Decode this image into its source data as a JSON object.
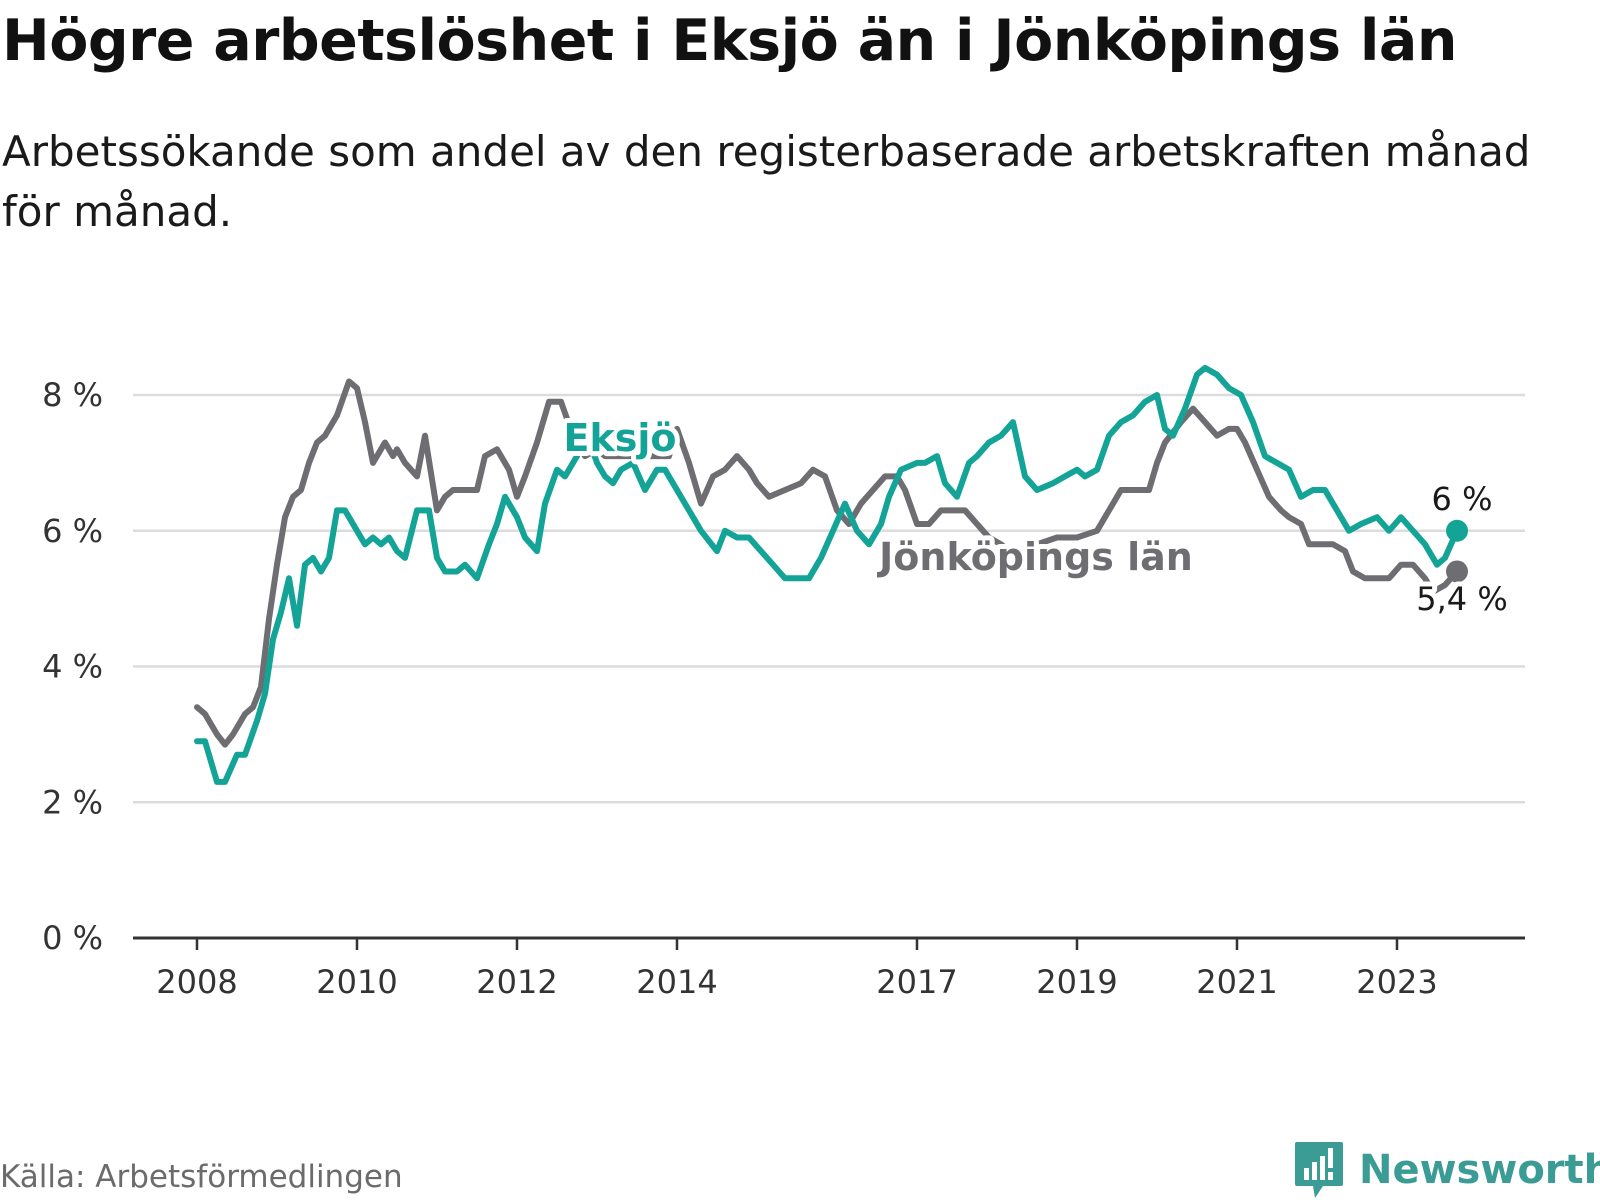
{
  "title": "Högre arbetslöshet i Eksjö än i Jönköpings län",
  "subtitle": "Arbetssökande som andel av den registerbaserade arbetskraften månad för månad.",
  "source": "Källa: Arbetsförmedlingen",
  "brand": "Newsworthy",
  "colors": {
    "eksjo": "#13a397",
    "lan": "#6e6d72",
    "grid": "#dcdcdc",
    "axis": "#333333",
    "brand": "#3b9c95"
  },
  "chart_data": {
    "type": "line",
    "title": "Högre arbetslöshet i Eksjö än i Jönköpings län",
    "xlabel": "",
    "ylabel": "",
    "ylim": [
      0,
      9
    ],
    "xlim": [
      2007.2,
      2024.6
    ],
    "yticks": [
      0,
      2,
      4,
      6,
      8
    ],
    "ytick_labels": [
      "0 %",
      "2 %",
      "4 %",
      "6 %",
      "8 %"
    ],
    "xticks": [
      2008,
      2010,
      2012,
      2014,
      2017,
      2019,
      2021,
      2023
    ],
    "xtick_labels": [
      "2008",
      "2010",
      "2012",
      "2014",
      "2017",
      "2019",
      "2021",
      "2023"
    ],
    "grid": true,
    "series": [
      {
        "name": "Jönköpings län",
        "label": "Jönköpings län",
        "end_label": "5,4 %",
        "color": "#6e6d72",
        "x": [
          2008.0,
          2008.1,
          2008.25,
          2008.35,
          2008.45,
          2008.6,
          2008.7,
          2008.8,
          2008.9,
          2009.0,
          2009.1,
          2009.2,
          2009.3,
          2009.4,
          2009.5,
          2009.6,
          2009.75,
          2009.9,
          2010.0,
          2010.1,
          2010.2,
          2010.35,
          2010.45,
          2010.5,
          2010.6,
          2010.75,
          2010.85,
          2011.0,
          2011.1,
          2011.2,
          2011.35,
          2011.5,
          2011.6,
          2011.75,
          2011.9,
          2012.0,
          2012.1,
          2012.25,
          2012.4,
          2012.55,
          2012.7,
          2012.85,
          2013.0,
          2013.1,
          2013.2,
          2013.35,
          2013.5,
          2013.6,
          2013.75,
          2013.9,
          2014.0,
          2014.15,
          2014.3,
          2014.45,
          2014.6,
          2014.75,
          2014.9,
          2015.0,
          2015.15,
          2015.35,
          2015.55,
          2015.7,
          2015.85,
          2016.0,
          2016.15,
          2016.3,
          2016.45,
          2016.6,
          2016.75,
          2016.85,
          2017.0,
          2017.15,
          2017.3,
          2017.45,
          2017.55,
          2017.6,
          2017.75,
          2017.9,
          2018.05,
          2018.15,
          2018.25,
          2018.5,
          2018.75,
          2019.0,
          2019.25,
          2019.4,
          2019.55,
          2019.75,
          2019.9,
          2020.0,
          2020.1,
          2020.3,
          2020.45,
          2020.6,
          2020.75,
          2020.9,
          2021.0,
          2021.1,
          2021.25,
          2021.4,
          2021.55,
          2021.65,
          2021.8,
          2021.9,
          2022.05,
          2022.2,
          2022.35,
          2022.45,
          2022.6,
          2022.75,
          2022.9,
          2023.05,
          2023.2,
          2023.35,
          2023.45,
          2023.6,
          2023.75
        ],
        "values": [
          3.4,
          3.3,
          3.0,
          2.85,
          3.0,
          3.3,
          3.4,
          3.7,
          4.7,
          5.5,
          6.2,
          6.5,
          6.6,
          7.0,
          7.3,
          7.4,
          7.7,
          8.2,
          8.1,
          7.6,
          7.0,
          7.3,
          7.1,
          7.2,
          7.0,
          6.8,
          7.4,
          6.3,
          6.5,
          6.6,
          6.6,
          6.6,
          7.1,
          7.2,
          6.9,
          6.5,
          6.8,
          7.3,
          7.9,
          7.9,
          7.4,
          7.1,
          7.2,
          7.1,
          7.1,
          7.1,
          7.1,
          7.1,
          7.1,
          7.1,
          7.5,
          7.0,
          6.4,
          6.8,
          6.9,
          7.1,
          6.9,
          6.7,
          6.5,
          6.6,
          6.7,
          6.9,
          6.8,
          6.3,
          6.1,
          6.4,
          6.6,
          6.8,
          6.8,
          6.6,
          6.1,
          6.1,
          6.3,
          6.3,
          6.3,
          6.3,
          6.1,
          5.9,
          5.8,
          5.7,
          5.7,
          5.8,
          5.9,
          5.9,
          6.0,
          6.3,
          6.6,
          6.6,
          6.6,
          7.0,
          7.3,
          7.6,
          7.8,
          7.6,
          7.4,
          7.5,
          7.5,
          7.3,
          6.9,
          6.5,
          6.3,
          6.2,
          6.1,
          5.8,
          5.8,
          5.8,
          5.7,
          5.4,
          5.3,
          5.3,
          5.3,
          5.5,
          5.5,
          5.3,
          5.1,
          5.2,
          5.4
        ]
      },
      {
        "name": "Eksjö",
        "label": "Eksjö",
        "end_label": "6 %",
        "color": "#13a397",
        "x": [
          2008.0,
          2008.1,
          2008.25,
          2008.35,
          2008.5,
          2008.6,
          2008.75,
          2008.85,
          2008.95,
          2009.05,
          2009.15,
          2009.25,
          2009.35,
          2009.45,
          2009.55,
          2009.65,
          2009.75,
          2009.85,
          2010.0,
          2010.1,
          2010.2,
          2010.3,
          2010.4,
          2010.5,
          2010.6,
          2010.75,
          2010.9,
          2011.0,
          2011.1,
          2011.25,
          2011.35,
          2011.5,
          2011.65,
          2011.75,
          2011.85,
          2012.0,
          2012.1,
          2012.25,
          2012.35,
          2012.5,
          2012.6,
          2012.75,
          2012.85,
          2013.0,
          2013.1,
          2013.2,
          2013.3,
          2013.45,
          2013.6,
          2013.75,
          2013.85,
          2014.0,
          2014.15,
          2014.3,
          2014.5,
          2014.6,
          2014.75,
          2014.9,
          2015.05,
          2015.2,
          2015.35,
          2015.5,
          2015.65,
          2015.8,
          2015.95,
          2016.1,
          2016.25,
          2016.4,
          2016.55,
          2016.65,
          2016.8,
          2017.0,
          2017.1,
          2017.25,
          2017.35,
          2017.5,
          2017.65,
          2017.75,
          2017.9,
          2018.05,
          2018.2,
          2018.35,
          2018.5,
          2018.7,
          2018.85,
          2019.0,
          2019.1,
          2019.25,
          2019.4,
          2019.55,
          2019.7,
          2019.85,
          2020.0,
          2020.1,
          2020.2,
          2020.35,
          2020.5,
          2020.6,
          2020.75,
          2020.9,
          2021.05,
          2021.2,
          2021.35,
          2021.5,
          2021.65,
          2021.8,
          2021.95,
          2022.1,
          2022.25,
          2022.4,
          2022.55,
          2022.75,
          2022.9,
          2023.05,
          2023.2,
          2023.35,
          2023.5,
          2023.6,
          2023.75
        ],
        "values": [
          2.9,
          2.9,
          2.3,
          2.3,
          2.7,
          2.7,
          3.2,
          3.6,
          4.4,
          4.8,
          5.3,
          4.6,
          5.5,
          5.6,
          5.4,
          5.6,
          6.3,
          6.3,
          6.0,
          5.8,
          5.9,
          5.8,
          5.9,
          5.7,
          5.6,
          6.3,
          6.3,
          5.6,
          5.4,
          5.4,
          5.5,
          5.3,
          5.8,
          6.1,
          6.5,
          6.2,
          5.9,
          5.7,
          6.4,
          6.9,
          6.8,
          7.1,
          7.5,
          7.0,
          6.8,
          6.7,
          6.9,
          7.0,
          6.6,
          6.9,
          6.9,
          6.6,
          6.3,
          6.0,
          5.7,
          6.0,
          5.9,
          5.9,
          5.7,
          5.5,
          5.3,
          5.3,
          5.3,
          5.6,
          6.0,
          6.4,
          6.0,
          5.8,
          6.1,
          6.5,
          6.9,
          7.0,
          7.0,
          7.1,
          6.7,
          6.5,
          7.0,
          7.1,
          7.3,
          7.4,
          7.6,
          6.8,
          6.6,
          6.7,
          6.8,
          6.9,
          6.8,
          6.9,
          7.4,
          7.6,
          7.7,
          7.9,
          8.0,
          7.5,
          7.4,
          7.8,
          8.3,
          8.4,
          8.3,
          8.1,
          8.0,
          7.6,
          7.1,
          7.0,
          6.9,
          6.5,
          6.6,
          6.6,
          6.3,
          6.0,
          6.1,
          6.2,
          6.0,
          6.2,
          6.0,
          5.8,
          5.5,
          5.6,
          6.0
        ]
      }
    ]
  }
}
